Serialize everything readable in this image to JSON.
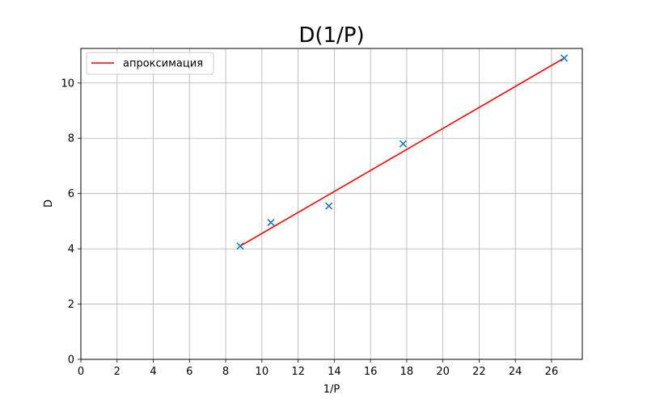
{
  "chart_data": {
    "type": "scatter",
    "title": "D(1/P)",
    "xlabel": "1/P",
    "ylabel": "D",
    "xlim": [
      0,
      27.7
    ],
    "ylim": [
      0,
      11.25
    ],
    "xticks": [
      0,
      2,
      4,
      6,
      8,
      10,
      12,
      14,
      16,
      18,
      20,
      22,
      24,
      26
    ],
    "yticks": [
      0,
      2,
      4,
      6,
      8,
      10
    ],
    "grid": true,
    "legend_position": "top-left",
    "series": [
      {
        "kind": "scatter",
        "marker": "x",
        "color": "#1f77b4",
        "x": [
          8.8,
          10.5,
          13.7,
          17.8,
          26.7
        ],
        "y": [
          4.1,
          4.95,
          5.55,
          7.8,
          10.9
        ]
      },
      {
        "kind": "line",
        "name": "апроксимация",
        "color": "#ff0000",
        "x": [
          8.8,
          26.7
        ],
        "y": [
          4.1,
          10.9
        ]
      }
    ]
  }
}
